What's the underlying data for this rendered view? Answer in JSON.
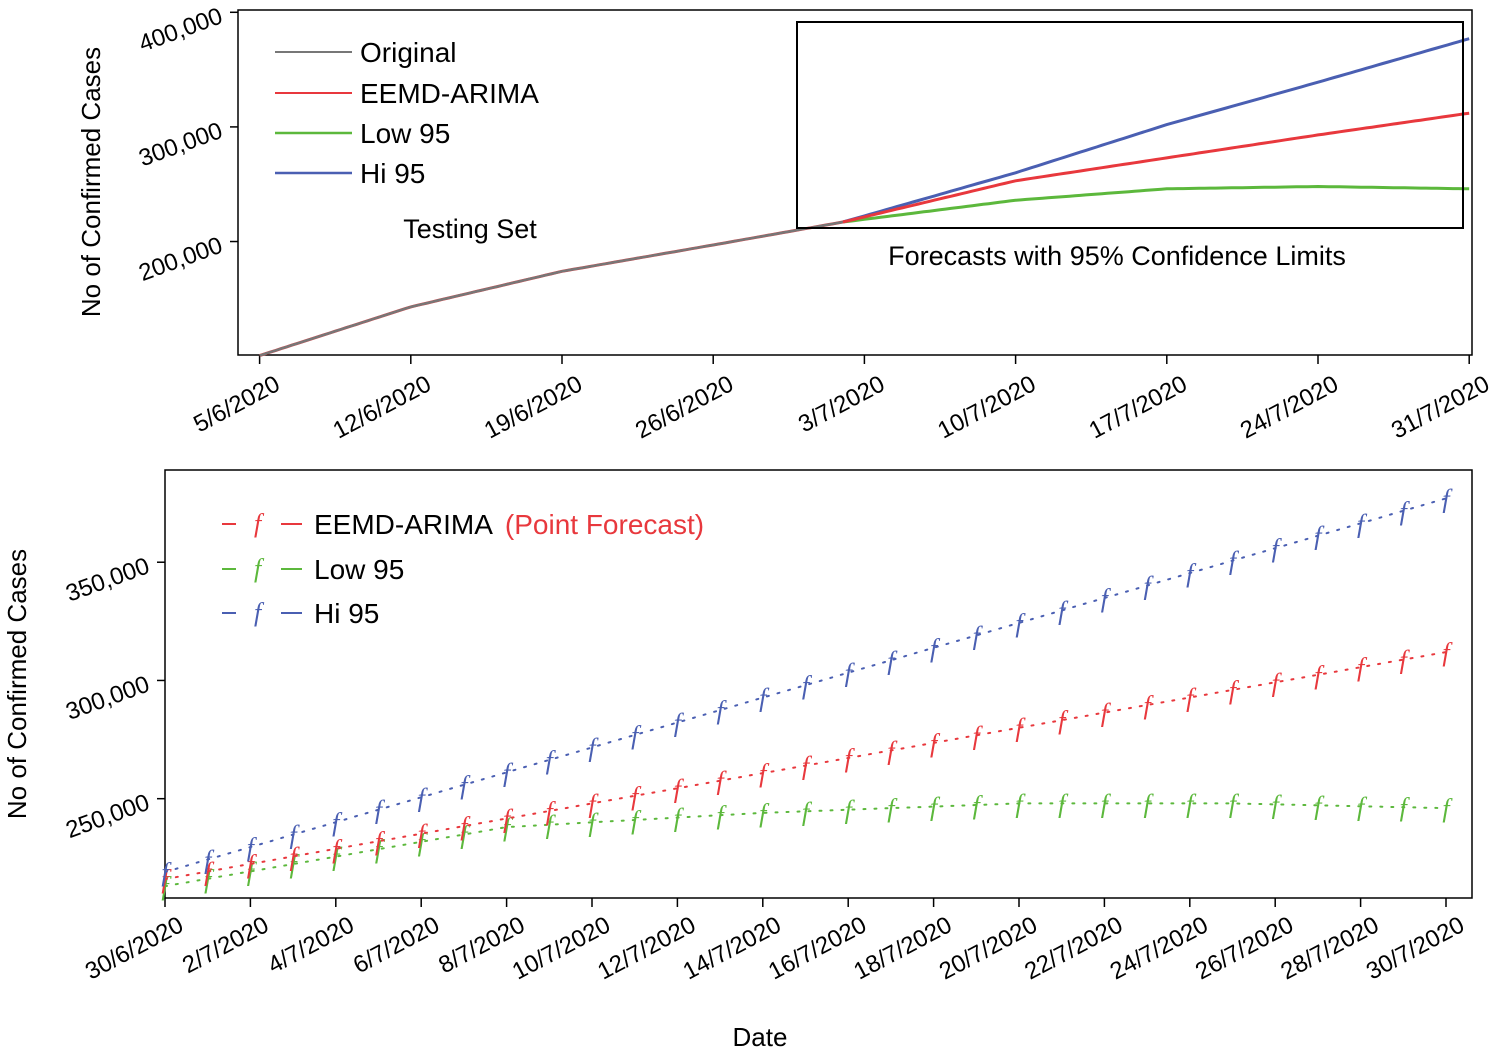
{
  "colors": {
    "original": "#777777",
    "eemd": "#e8383d",
    "low": "#5cb83c",
    "hi": "#4a5fb2"
  },
  "chart_data": [
    {
      "type": "line",
      "ylabel": "No of Confirmed Cases",
      "xlabel": "",
      "x_ticks": [
        "5/6/2020",
        "12/6/2020",
        "19/6/2020",
        "26/6/2020",
        "3/7/2020",
        "10/7/2020",
        "17/7/2020",
        "24/7/2020",
        "31/7/2020"
      ],
      "y_ticks": [
        {
          "value": 200000,
          "label": "200,000"
        },
        {
          "value": 300000,
          "label": "300,000"
        },
        {
          "value": 400000,
          "label": "400,000"
        }
      ],
      "ylim": [
        101000,
        402000
      ],
      "xlim_days": [
        -1,
        57
      ],
      "legend": [
        "Original",
        "EEMD-ARIMA",
        "Low 95",
        "Hi 95"
      ],
      "annotations": {
        "testing": "Testing Set",
        "forecast": "Forecasts with 95% Confidence Limits"
      },
      "series": [
        {
          "name": "Original",
          "x_days": [
            0,
            7,
            14,
            21,
            27
          ],
          "values": [
            100500,
            143000,
            174000,
            197000,
            217000
          ]
        },
        {
          "name": "EEMD-ARIMA",
          "x_days": [
            0,
            7,
            14,
            21,
            27,
            35,
            42,
            49,
            56
          ],
          "values": [
            100500,
            143000,
            174000,
            197000,
            217000,
            253000,
            273000,
            293000,
            312000
          ]
        },
        {
          "name": "Low 95",
          "x_days": [
            27,
            35,
            42,
            49,
            56
          ],
          "values": [
            217000,
            236000,
            246000,
            248000,
            246000
          ]
        },
        {
          "name": "Hi 95",
          "x_days": [
            27,
            35,
            42,
            49,
            56
          ],
          "values": [
            217000,
            260000,
            302000,
            339000,
            377000
          ]
        }
      ]
    },
    {
      "type": "line",
      "ylabel": "No of Confirmed Cases",
      "xlabel": "Date",
      "x_ticks": [
        "30/6/2020",
        "2/7/2020",
        "4/7/2020",
        "6/7/2020",
        "8/7/2020",
        "10/7/2020",
        "12/7/2020",
        "14/7/2020",
        "16/7/2020",
        "18/7/2020",
        "20/7/2020",
        "22/7/2020",
        "24/7/2020",
        "26/7/2020",
        "28/7/2020",
        "30/7/2020"
      ],
      "y_ticks": [
        {
          "value": 250000,
          "label": "250,000"
        },
        {
          "value": 300000,
          "label": "300,000"
        },
        {
          "value": 350000,
          "label": "350,000"
        }
      ],
      "ylim": [
        208000,
        389000
      ],
      "xlim_days": [
        0,
        30.8
      ],
      "marker": "f",
      "legend": [
        {
          "name": "EEMD-ARIMA",
          "suffix": "(Point Forecast)"
        },
        {
          "name": "Low 95",
          "suffix": ""
        },
        {
          "name": "Hi 95",
          "suffix": ""
        }
      ],
      "series": [
        {
          "name": "EEMD-ARIMA",
          "x_days": [
            0,
            30
          ],
          "values": [
            216000,
            312000
          ]
        },
        {
          "name": "Low 95",
          "x_days": [
            0,
            8,
            14,
            20,
            25,
            30
          ],
          "values": [
            213000,
            238000,
            244000,
            248000,
            248000,
            246000
          ]
        },
        {
          "name": "Hi 95",
          "x_days": [
            0,
            30
          ],
          "values": [
            219000,
            377000
          ]
        }
      ]
    }
  ]
}
